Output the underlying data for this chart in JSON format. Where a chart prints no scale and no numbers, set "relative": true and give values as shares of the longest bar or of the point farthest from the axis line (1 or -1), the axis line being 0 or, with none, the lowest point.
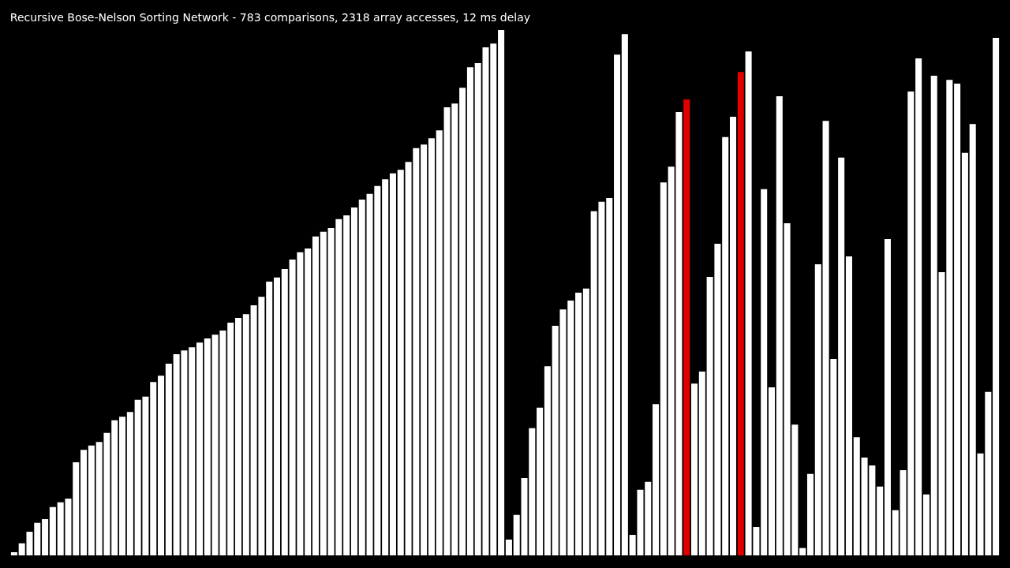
{
  "chart_data": {
    "type": "bar",
    "title": "Recursive Bose-Nelson Sorting Network - 783 comparisons, 2318 array accesses, 12 ms delay",
    "relative": true,
    "categories": [
      null,
      null,
      null,
      null,
      null,
      null,
      null,
      null,
      null,
      null,
      null,
      null,
      null,
      null,
      null,
      null,
      null,
      null,
      null,
      null,
      null,
      null,
      null,
      null,
      null,
      null,
      null,
      null,
      null,
      null,
      null,
      null,
      null,
      null,
      null,
      null,
      null,
      null,
      null,
      null,
      null,
      null,
      null,
      null,
      null,
      null,
      null,
      null,
      null,
      null,
      null,
      null,
      null,
      null,
      null,
      null,
      null,
      null,
      null,
      null,
      null,
      null,
      null,
      null,
      null,
      null,
      null,
      null,
      null,
      null,
      null,
      null,
      null,
      null,
      null,
      null,
      null,
      null,
      null,
      null,
      null,
      null,
      null,
      null,
      null,
      null,
      null,
      null,
      null,
      null,
      null,
      null,
      null,
      null,
      null,
      null,
      null,
      null,
      null,
      null,
      null,
      null,
      null,
      null,
      null,
      null,
      null,
      null,
      null,
      null,
      null,
      null,
      null,
      null,
      null,
      null,
      null,
      null,
      null,
      null,
      null,
      null,
      null,
      null,
      null,
      null,
      null,
      null
    ],
    "values": [
      0.006,
      0.023,
      0.045,
      0.062,
      0.069,
      0.092,
      0.101,
      0.108,
      0.177,
      0.201,
      0.209,
      0.216,
      0.233,
      0.257,
      0.264,
      0.273,
      0.296,
      0.302,
      0.33,
      0.342,
      0.365,
      0.383,
      0.39,
      0.396,
      0.405,
      0.413,
      0.42,
      0.428,
      0.443,
      0.452,
      0.459,
      0.476,
      0.492,
      0.521,
      0.529,
      0.545,
      0.563,
      0.577,
      0.584,
      0.607,
      0.616,
      0.623,
      0.64,
      0.647,
      0.662,
      0.677,
      0.688,
      0.703,
      0.716,
      0.727,
      0.734,
      0.749,
      0.775,
      0.782,
      0.794,
      0.809,
      0.853,
      0.86,
      0.89,
      0.929,
      0.937,
      0.967,
      0.974,
      1,
      0.03,
      0.077,
      0.147,
      0.242,
      0.281,
      0.36,
      0.437,
      0.468,
      0.485,
      0.5,
      0.508,
      0.655,
      0.673,
      0.68,
      0.953,
      0.992,
      0.039,
      0.125,
      0.14,
      0.288,
      0.71,
      0.74,
      0.844,
      0.868,
      0.327,
      0.35,
      0.53,
      0.593,
      0.796,
      0.835,
      0.92,
      0.959,
      0.054,
      0.697,
      0.32,
      0.874,
      0.632,
      0.249,
      0.014,
      0.155,
      0.554,
      0.827,
      0.374,
      0.757,
      0.569,
      0.225,
      0.186,
      0.171,
      0.131,
      0.602,
      0.086,
      0.162,
      0.883,
      0.946,
      0.116,
      0.913,
      0.539,
      0.905,
      0.898,
      0.766,
      0.821,
      0.194,
      0.311,
      0.985
    ],
    "colors": [
      "#ffffff",
      "#ffffff",
      "#ffffff",
      "#ffffff",
      "#ffffff",
      "#ffffff",
      "#ffffff",
      "#ffffff",
      "#ffffff",
      "#ffffff",
      "#ffffff",
      "#ffffff",
      "#ffffff",
      "#ffffff",
      "#ffffff",
      "#ffffff",
      "#ffffff",
      "#ffffff",
      "#ffffff",
      "#ffffff",
      "#ffffff",
      "#ffffff",
      "#ffffff",
      "#ffffff",
      "#ffffff",
      "#ffffff",
      "#ffffff",
      "#ffffff",
      "#ffffff",
      "#ffffff",
      "#ffffff",
      "#ffffff",
      "#ffffff",
      "#ffffff",
      "#ffffff",
      "#ffffff",
      "#ffffff",
      "#ffffff",
      "#ffffff",
      "#ffffff",
      "#ffffff",
      "#ffffff",
      "#ffffff",
      "#ffffff",
      "#ffffff",
      "#ffffff",
      "#ffffff",
      "#ffffff",
      "#ffffff",
      "#ffffff",
      "#ffffff",
      "#ffffff",
      "#ffffff",
      "#ffffff",
      "#ffffff",
      "#ffffff",
      "#ffffff",
      "#ffffff",
      "#ffffff",
      "#ffffff",
      "#ffffff",
      "#ffffff",
      "#ffffff",
      "#ffffff",
      "#ffffff",
      "#ffffff",
      "#ffffff",
      "#ffffff",
      "#ffffff",
      "#ffffff",
      "#ffffff",
      "#ffffff",
      "#ffffff",
      "#ffffff",
      "#ffffff",
      "#ffffff",
      "#ffffff",
      "#ffffff",
      "#ffffff",
      "#ffffff",
      "#ffffff",
      "#ffffff",
      "#ffffff",
      "#ffffff",
      "#ffffff",
      "#ffffff",
      "#ffffff",
      "#e00000",
      "#ffffff",
      "#ffffff",
      "#ffffff",
      "#ffffff",
      "#ffffff",
      "#ffffff",
      "#e00000",
      "#ffffff",
      "#ffffff",
      "#ffffff",
      "#ffffff",
      "#ffffff",
      "#ffffff",
      "#ffffff",
      "#ffffff",
      "#ffffff",
      "#ffffff",
      "#ffffff",
      "#ffffff",
      "#ffffff",
      "#ffffff",
      "#ffffff",
      "#ffffff",
      "#ffffff",
      "#ffffff",
      "#ffffff",
      "#ffffff",
      "#ffffff",
      "#ffffff",
      "#ffffff",
      "#ffffff",
      "#ffffff",
      "#ffffff",
      "#ffffff",
      "#ffffff",
      "#ffffff",
      "#ffffff",
      "#ffffff",
      "#ffffff",
      "#ffffff"
    ]
  }
}
